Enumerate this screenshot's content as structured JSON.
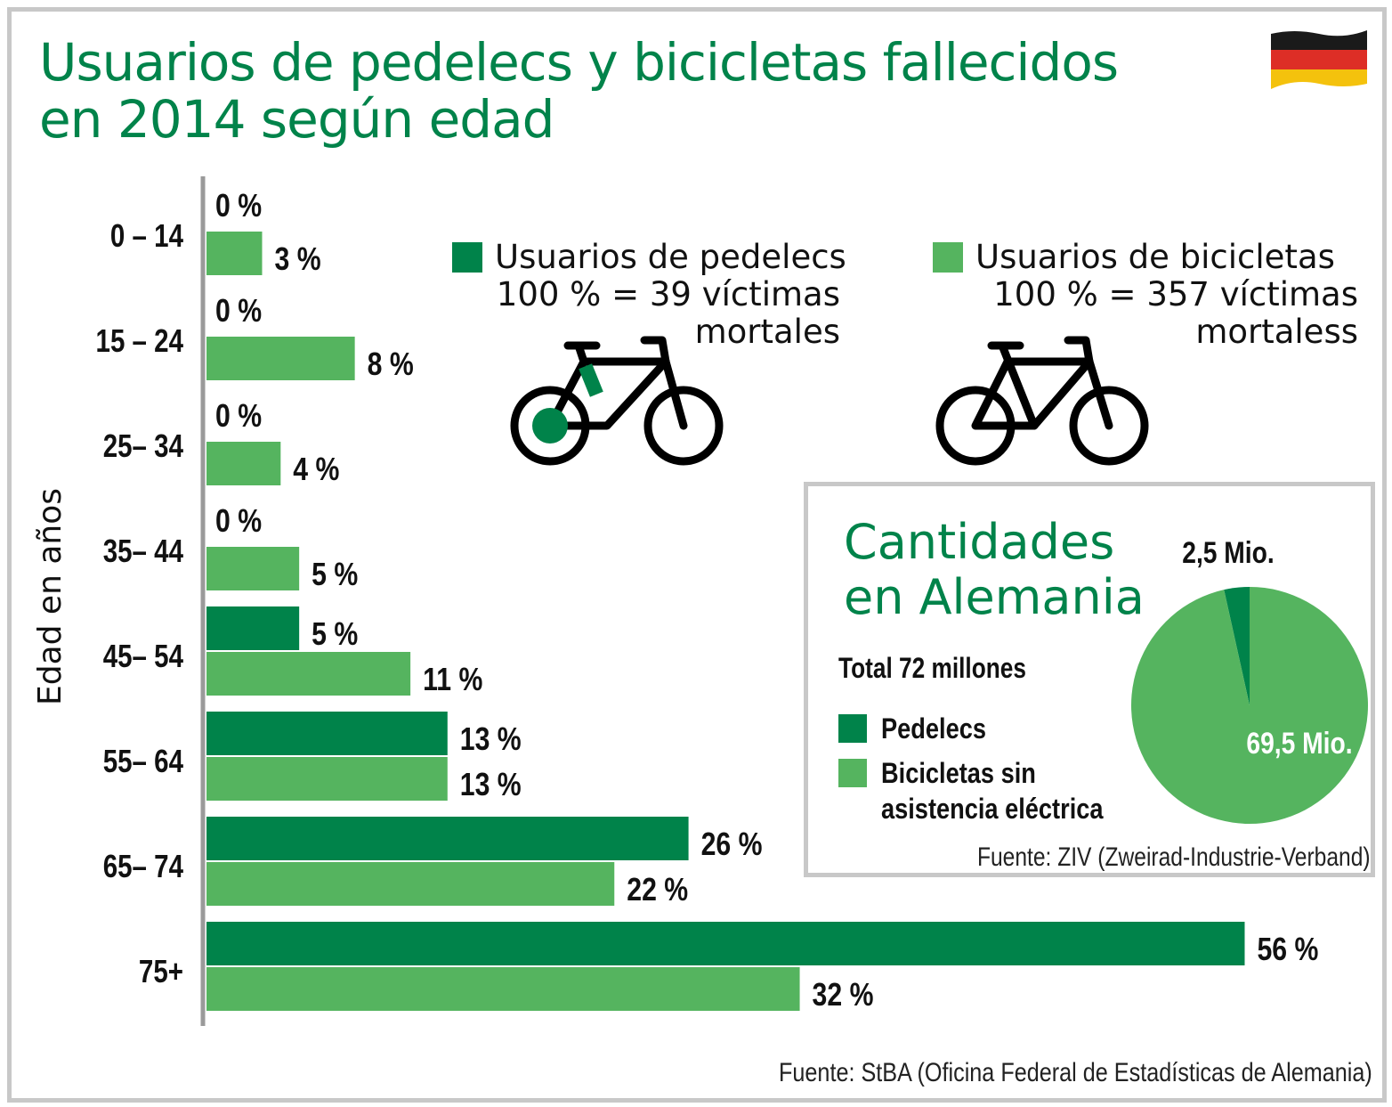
{
  "title_line1": "Usuarios de pedelecs y bicicletas fallecidos",
  "title_line2": "en 2014 según edad",
  "flag_colors": [
    "#1a1a1a",
    "#dd2e26",
    "#f4c20d"
  ],
  "colors": {
    "pedelecs": "#00834a",
    "bicicletas": "#55b45f",
    "title": "#00834a",
    "axis": "#9a9a9a"
  },
  "legend": {
    "pedelecs": {
      "line1": "Usuarios de pedelecs",
      "line2": "100 % = 39 víctimas",
      "line3": "mortales"
    },
    "bicicletas": {
      "line1": "Usuarios de bicicletas",
      "line2": "100 % = 357 víctimas",
      "line3": "mortaless"
    }
  },
  "chart_data": {
    "type": "bar",
    "orientation": "horizontal",
    "title": "Usuarios de pedelecs y bicicletas fallecidos en 2014 según edad",
    "ylabel": "Edad en años",
    "xlim": [
      0,
      60
    ],
    "categories": [
      "0 – 14",
      "15 – 24",
      "25– 34",
      "35– 44",
      "45– 54",
      "55– 64",
      "65– 74",
      "75+"
    ],
    "series": [
      {
        "name": "Usuarios de pedelecs",
        "values": [
          0,
          0,
          0,
          0,
          5,
          13,
          26,
          56
        ],
        "labels": [
          "0 %",
          "0 %",
          "0 %",
          "0 %",
          "5 %",
          "13 %",
          "26 %",
          "56 %"
        ]
      },
      {
        "name": "Usuarios de bicicletas",
        "values": [
          3,
          8,
          4,
          5,
          11,
          13,
          22,
          32
        ],
        "labels": [
          "3 %",
          "8 %",
          "4 %",
          "5 %",
          "11 %",
          "13 %",
          "22 %",
          "32 %"
        ]
      }
    ]
  },
  "inset": {
    "title_line1": "Cantidades",
    "title_line2": "en Alemania",
    "total": "Total 72 millones",
    "legend_pedelecs": "Pedelecs",
    "legend_bicicletas_line1": "Bicicletas sin",
    "legend_bicicletas_line2": "asistencia eléctrica",
    "source": "Fuente: ZIV (Zweirad-Industrie-Verband)",
    "pie_data": {
      "type": "pie",
      "slices": [
        {
          "name": "Pedelecs",
          "value": 2.5,
          "label": "2,5 Mio."
        },
        {
          "name": "Bicicletas sin asistencia eléctrica",
          "value": 69.5,
          "label": "69,5 Mio."
        }
      ]
    }
  },
  "source_main": "Fuente: StBA (Oficina Federal de Estadísticas de Alemania)"
}
